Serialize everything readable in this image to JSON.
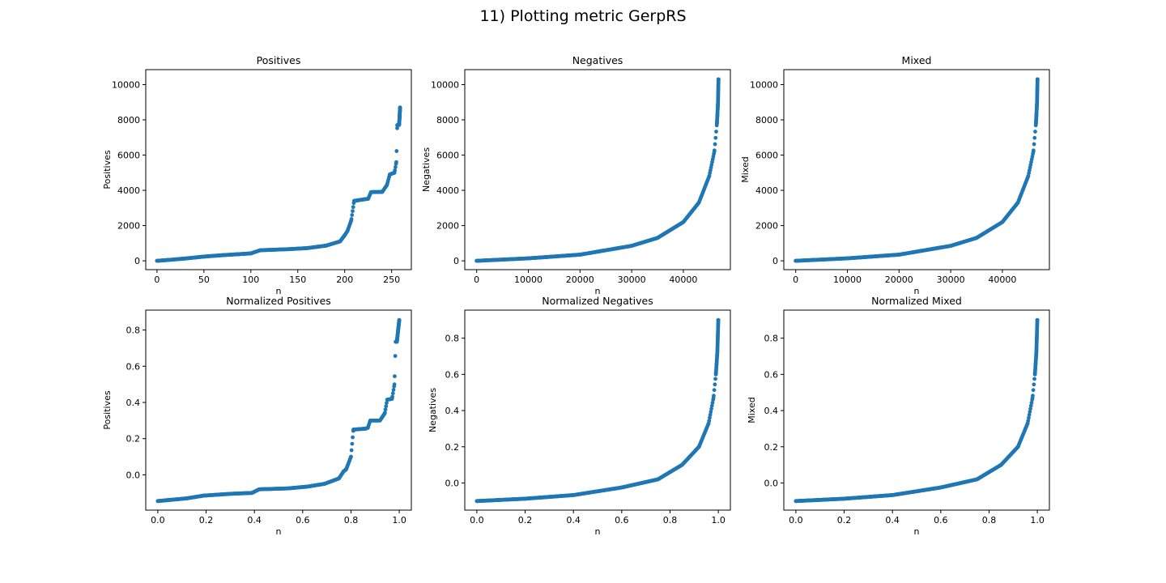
{
  "suptitle": "11) Plotting metric GerpRS",
  "style": {
    "point_color": "#1f77b4"
  },
  "chart_data": [
    {
      "type": "scatter",
      "title": "Positives",
      "xlabel": "n",
      "ylabel": "Positives",
      "xlim": [
        -12,
        271
      ],
      "ylim": [
        -500,
        10850
      ],
      "xticks": [
        0,
        50,
        100,
        150,
        200,
        250
      ],
      "yticks": [
        0,
        2000,
        4000,
        6000,
        8000,
        10000
      ],
      "x_count": 260,
      "curve": [
        [
          0,
          0
        ],
        [
          10,
          40
        ],
        [
          30,
          130
        ],
        [
          50,
          240
        ],
        [
          70,
          320
        ],
        [
          100,
          420
        ],
        [
          110,
          600
        ],
        [
          140,
          660
        ],
        [
          160,
          720
        ],
        [
          180,
          860
        ],
        [
          195,
          1100
        ],
        [
          200,
          1450
        ],
        [
          203,
          1700
        ],
        [
          207,
          2300
        ],
        [
          210,
          3400
        ],
        [
          222,
          3500
        ],
        [
          225,
          3520
        ],
        [
          228,
          3900
        ],
        [
          240,
          3910
        ],
        [
          245,
          4300
        ],
        [
          248,
          4900
        ],
        [
          253,
          5000
        ],
        [
          255,
          5600
        ],
        [
          256,
          7700
        ],
        [
          258,
          7710
        ],
        [
          259,
          8700
        ]
      ]
    },
    {
      "type": "scatter",
      "title": "Negatives",
      "xlabel": "n",
      "ylabel": "Negatives",
      "xlim": [
        -2300,
        49100
      ],
      "ylim": [
        -500,
        10850
      ],
      "xticks": [
        0,
        10000,
        20000,
        30000,
        40000
      ],
      "yticks": [
        0,
        2000,
        4000,
        6000,
        8000,
        10000
      ],
      "x_count": 46800,
      "curve": [
        [
          0,
          0
        ],
        [
          10000,
          140
        ],
        [
          20000,
          350
        ],
        [
          30000,
          850
        ],
        [
          35000,
          1300
        ],
        [
          40000,
          2200
        ],
        [
          43000,
          3300
        ],
        [
          45000,
          4800
        ],
        [
          46000,
          6200
        ],
        [
          46500,
          7800
        ],
        [
          46700,
          8900
        ],
        [
          46800,
          10300
        ]
      ]
    },
    {
      "type": "scatter",
      "title": "Mixed",
      "xlabel": "n",
      "ylabel": "Mixed",
      "xlim": [
        -2300,
        49100
      ],
      "ylim": [
        -500,
        10850
      ],
      "xticks": [
        0,
        10000,
        20000,
        30000,
        40000
      ],
      "yticks": [
        0,
        2000,
        4000,
        6000,
        8000,
        10000
      ],
      "x_count": 46800,
      "curve": [
        [
          0,
          0
        ],
        [
          10000,
          140
        ],
        [
          20000,
          350
        ],
        [
          30000,
          850
        ],
        [
          35000,
          1300
        ],
        [
          40000,
          2200
        ],
        [
          43000,
          3300
        ],
        [
          45000,
          4800
        ],
        [
          46000,
          6200
        ],
        [
          46500,
          7800
        ],
        [
          46700,
          8900
        ],
        [
          46800,
          10300
        ]
      ]
    },
    {
      "type": "scatter",
      "title": "Normalized Positives",
      "xlabel": "n",
      "ylabel": "Positives",
      "xlim": [
        -0.05,
        1.05
      ],
      "ylim": [
        -0.195,
        0.91
      ],
      "xticks": [
        0.0,
        0.2,
        0.4,
        0.6,
        0.8,
        1.0
      ],
      "yticks": [
        0.0,
        0.2,
        0.4,
        0.6,
        0.8
      ],
      "ytick_labels": [
        "0.0",
        "0.2",
        "0.4",
        "0.6",
        "0.8"
      ],
      "xtick_labels": [
        "0.0",
        "0.2",
        "0.4",
        "0.6",
        "0.8",
        "1.0"
      ],
      "x_count": 260,
      "curve": [
        [
          0,
          -0.145
        ],
        [
          0.04,
          -0.14
        ],
        [
          0.12,
          -0.13
        ],
        [
          0.19,
          -0.115
        ],
        [
          0.3,
          -0.105
        ],
        [
          0.39,
          -0.1
        ],
        [
          0.42,
          -0.08
        ],
        [
          0.54,
          -0.075
        ],
        [
          0.62,
          -0.065
        ],
        [
          0.69,
          -0.05
        ],
        [
          0.75,
          -0.02
        ],
        [
          0.77,
          0.02
        ],
        [
          0.78,
          0.03
        ],
        [
          0.8,
          0.1
        ],
        [
          0.81,
          0.25
        ],
        [
          0.86,
          0.255
        ],
        [
          0.87,
          0.26
        ],
        [
          0.88,
          0.3
        ],
        [
          0.92,
          0.3
        ],
        [
          0.94,
          0.34
        ],
        [
          0.95,
          0.415
        ],
        [
          0.97,
          0.42
        ],
        [
          0.98,
          0.5
        ],
        [
          0.985,
          0.735
        ],
        [
          0.99,
          0.735
        ],
        [
          1.0,
          0.855
        ]
      ]
    },
    {
      "type": "scatter",
      "title": "Normalized Negatives",
      "xlabel": "n",
      "ylabel": "Negatives",
      "xlim": [
        -0.05,
        1.05
      ],
      "ylim": [
        -0.15,
        0.955
      ],
      "xticks": [
        0.0,
        0.2,
        0.4,
        0.6,
        0.8,
        1.0
      ],
      "yticks": [
        0.0,
        0.2,
        0.4,
        0.6,
        0.8
      ],
      "ytick_labels": [
        "0.0",
        "0.2",
        "0.4",
        "0.6",
        "0.8"
      ],
      "xtick_labels": [
        "0.0",
        "0.2",
        "0.4",
        "0.6",
        "0.8",
        "1.0"
      ],
      "x_count": 46800,
      "curve": [
        [
          0,
          -0.1
        ],
        [
          0.2,
          -0.087
        ],
        [
          0.4,
          -0.067
        ],
        [
          0.6,
          -0.025
        ],
        [
          0.75,
          0.02
        ],
        [
          0.85,
          0.1
        ],
        [
          0.92,
          0.2
        ],
        [
          0.96,
          0.33
        ],
        [
          0.98,
          0.47
        ],
        [
          0.99,
          0.6
        ],
        [
          0.996,
          0.72
        ],
        [
          1.0,
          0.9
        ]
      ]
    },
    {
      "type": "scatter",
      "title": "Normalized Mixed",
      "xlabel": "n",
      "ylabel": "Mixed",
      "xlim": [
        -0.05,
        1.05
      ],
      "ylim": [
        -0.15,
        0.955
      ],
      "xticks": [
        0.0,
        0.2,
        0.4,
        0.6,
        0.8,
        1.0
      ],
      "yticks": [
        0.0,
        0.2,
        0.4,
        0.6,
        0.8
      ],
      "ytick_labels": [
        "0.0",
        "0.2",
        "0.4",
        "0.6",
        "0.8"
      ],
      "xtick_labels": [
        "0.0",
        "0.2",
        "0.4",
        "0.6",
        "0.8",
        "1.0"
      ],
      "x_count": 46800,
      "curve": [
        [
          0,
          -0.1
        ],
        [
          0.2,
          -0.087
        ],
        [
          0.4,
          -0.067
        ],
        [
          0.6,
          -0.025
        ],
        [
          0.75,
          0.02
        ],
        [
          0.85,
          0.1
        ],
        [
          0.92,
          0.2
        ],
        [
          0.96,
          0.33
        ],
        [
          0.98,
          0.47
        ],
        [
          0.99,
          0.6
        ],
        [
          0.996,
          0.72
        ],
        [
          1.0,
          0.9
        ]
      ]
    }
  ]
}
